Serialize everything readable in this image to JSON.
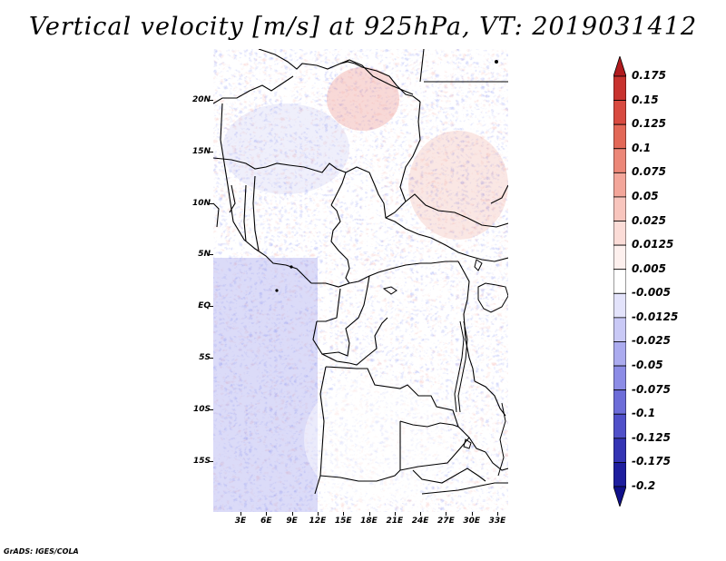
{
  "title": "Vertical velocity [m/s] at 925hPa, VT: 2019031412",
  "y_tick_labels": [
    "20N",
    "15N",
    "10N",
    "5N",
    "EQ",
    "5S",
    "10S",
    "15S"
  ],
  "x_tick_labels": [
    "3E",
    "6E",
    "9E",
    "12E",
    "15E",
    "18E",
    "21E",
    "24E",
    "27E",
    "30E",
    "33E"
  ],
  "colorbar": {
    "labels": [
      "0.175",
      "0.15",
      "0.125",
      "0.1",
      "0.075",
      "0.05",
      "0.025",
      "0.0125",
      "0.005",
      "-0.005",
      "-0.0125",
      "-0.025",
      "-0.05",
      "-0.075",
      "-0.1",
      "-0.125",
      "-0.175",
      "-0.2"
    ],
    "colors": [
      "#b11b1e",
      "#c8322e",
      "#d84a40",
      "#e36857",
      "#ec8778",
      "#f3a69a",
      "#f8c5bd",
      "#fbdcd7",
      "#fdf0ee",
      "#ffffff",
      "#e3e3fb",
      "#c9c9f6",
      "#ababef",
      "#8c8ce6",
      "#6d6dd9",
      "#5050c9",
      "#3434b4",
      "#1e1e9e",
      "#10108a"
    ]
  },
  "footer": "GrADS: IGES/COLA"
}
